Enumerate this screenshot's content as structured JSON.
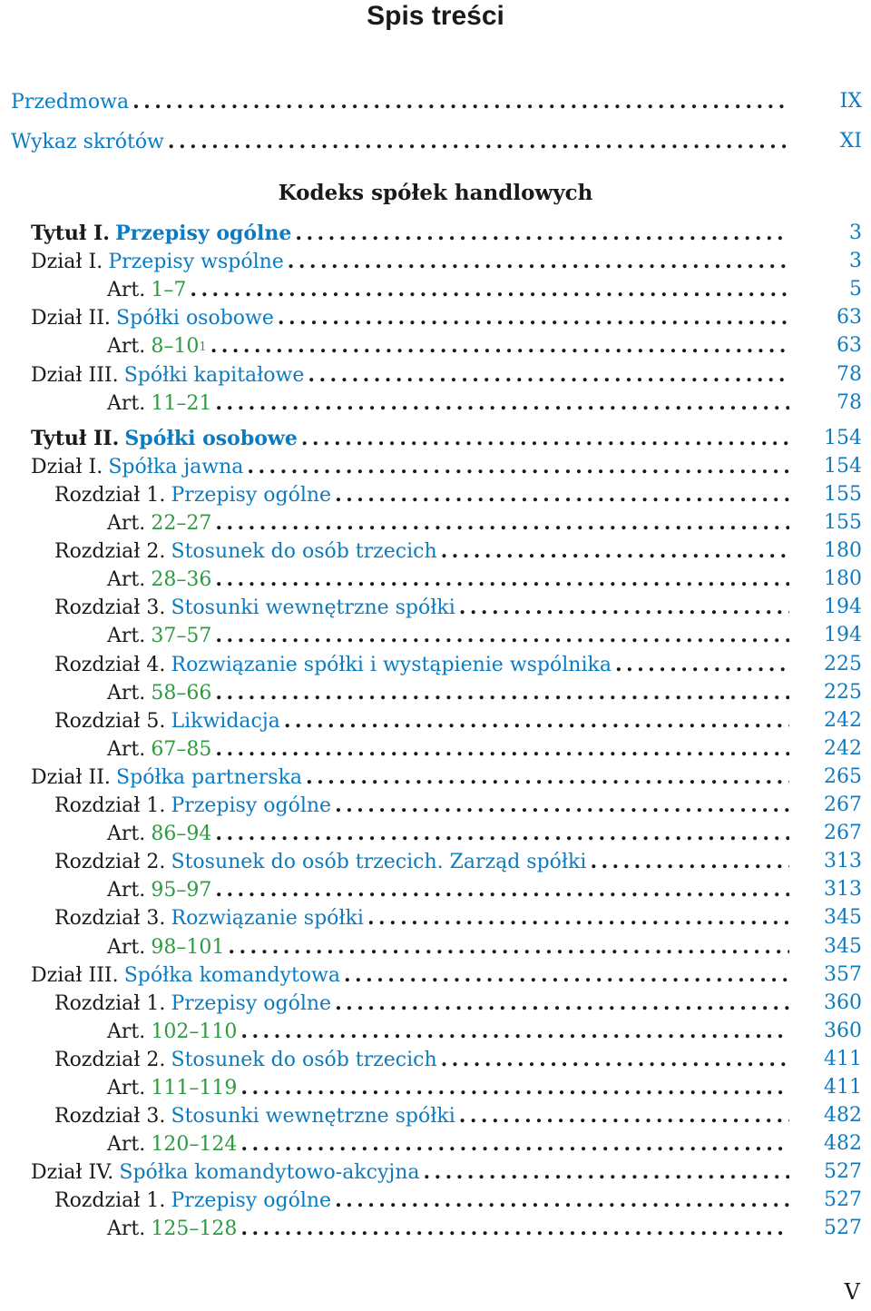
{
  "title": "Spis treści",
  "part_heading": "Kodeks spółek handlowych",
  "folio": "V",
  "front_entries": [
    {
      "label": "Przedmowa",
      "page": "IX"
    },
    {
      "label": "Wykaz skrótów",
      "page": "XI"
    }
  ],
  "entries": [
    {
      "prefix": "Tytuł I.",
      "label": "Przepisy ogólne",
      "page": "3",
      "level": 0,
      "bold": true
    },
    {
      "prefix": "Dział I.",
      "label": "Przepisy wspólne",
      "page": "3",
      "level": 0
    },
    {
      "prefix": "Art.",
      "label": "1–7",
      "page": "5",
      "level": 2,
      "art": true
    },
    {
      "prefix": "Dział II.",
      "label": "Spółki osobowe",
      "page": "63",
      "level": 0
    },
    {
      "prefix": "Art.",
      "label": "8–10",
      "sup": "1",
      "page": "63",
      "level": 2,
      "art": true
    },
    {
      "prefix": "Dział III.",
      "label": "Spółki kapitałowe",
      "page": "78",
      "level": 0
    },
    {
      "prefix": "Art.",
      "label": "11–21",
      "page": "78",
      "level": 2,
      "art": true
    },
    {
      "prefix": "Tytuł II.",
      "label": "Spółki osobowe",
      "page": "154",
      "level": 0,
      "bold": true
    },
    {
      "prefix": "Dział I.",
      "label": "Spółka jawna",
      "page": "154",
      "level": 0
    },
    {
      "prefix": "Rozdział 1.",
      "label": "Przepisy ogólne",
      "page": "155",
      "level": 1
    },
    {
      "prefix": "Art.",
      "label": "22–27",
      "page": "155",
      "level": 2,
      "art": true
    },
    {
      "prefix": "Rozdział 2.",
      "label": "Stosunek do osób trzecich",
      "page": "180",
      "level": 1
    },
    {
      "prefix": "Art.",
      "label": "28–36",
      "page": "180",
      "level": 2,
      "art": true
    },
    {
      "prefix": "Rozdział 3.",
      "label": "Stosunki wewnętrzne spółki",
      "page": "194",
      "level": 1
    },
    {
      "prefix": "Art.",
      "label": "37–57",
      "page": "194",
      "level": 2,
      "art": true
    },
    {
      "prefix": "Rozdział 4.",
      "label": "Rozwiązanie spółki i wystąpienie wspólnika",
      "page": "225",
      "level": 1
    },
    {
      "prefix": "Art.",
      "label": "58–66",
      "page": "225",
      "level": 2,
      "art": true
    },
    {
      "prefix": "Rozdział 5.",
      "label": "Likwidacja",
      "page": "242",
      "level": 1
    },
    {
      "prefix": "Art.",
      "label": "67–85",
      "page": "242",
      "level": 2,
      "art": true
    },
    {
      "prefix": "Dział II.",
      "label": "Spółka partnerska",
      "page": "265",
      "level": 0
    },
    {
      "prefix": "Rozdział 1.",
      "label": "Przepisy ogólne",
      "page": "267",
      "level": 1
    },
    {
      "prefix": "Art.",
      "label": "86–94",
      "page": "267",
      "level": 2,
      "art": true
    },
    {
      "prefix": "Rozdział 2.",
      "label": "Stosunek do osób trzecich. Zarząd spółki",
      "page": "313",
      "level": 1
    },
    {
      "prefix": "Art.",
      "label": "95–97",
      "page": "313",
      "level": 2,
      "art": true
    },
    {
      "prefix": "Rozdział 3.",
      "label": "Rozwiązanie spółki",
      "page": "345",
      "level": 1
    },
    {
      "prefix": "Art.",
      "label": "98–101",
      "page": "345",
      "level": 2,
      "art": true
    },
    {
      "prefix": "Dział III.",
      "label": "Spółka komandytowa",
      "page": "357",
      "level": 0
    },
    {
      "prefix": "Rozdział 1.",
      "label": "Przepisy ogólne",
      "page": "360",
      "level": 1
    },
    {
      "prefix": "Art.",
      "label": "102–110",
      "page": "360",
      "level": 3,
      "art": true
    },
    {
      "prefix": "Rozdział 2.",
      "label": "Stosunek do osób trzecich",
      "page": "411",
      "level": 1
    },
    {
      "prefix": "Art.",
      "label": "111–119",
      "page": "411",
      "level": 3,
      "art": true
    },
    {
      "prefix": "Rozdział 3.",
      "label": "Stosunki wewnętrzne spółki",
      "page": "482",
      "level": 1
    },
    {
      "prefix": "Art.",
      "label": "120–124",
      "page": "482",
      "level": 3,
      "art": true
    },
    {
      "prefix": "Dział IV.",
      "label": "Spółka komandytowo-akcyjna",
      "page": "527",
      "level": 0
    },
    {
      "prefix": "Rozdział 1.",
      "label": "Przepisy ogólne",
      "page": "527",
      "level": 1
    },
    {
      "prefix": "Art.",
      "label": "125–128",
      "page": "527",
      "level": 3,
      "art": true
    }
  ]
}
